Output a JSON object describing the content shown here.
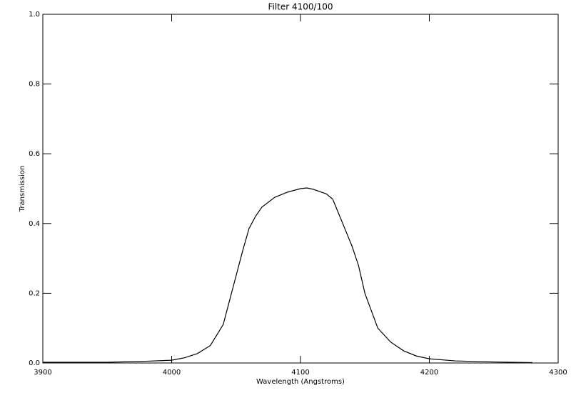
{
  "chart_data": {
    "type": "line",
    "title": "Filter 4100/100",
    "x_label": "Wavelength (Angstroms)",
    "y_label": "Transmission",
    "x": [
      3900,
      3950,
      3980,
      4000,
      4010,
      4020,
      4030,
      4040,
      4045,
      4050,
      4055,
      4060,
      4065,
      4070,
      4080,
      4090,
      4100,
      4105,
      4110,
      4120,
      4125,
      4130,
      4135,
      4140,
      4145,
      4150,
      4155,
      4160,
      4170,
      4180,
      4190,
      4200,
      4220,
      4250,
      4280
    ],
    "series": [
      {
        "color": "#000000",
        "values": [
          0.002,
          0.002,
          0.005,
          0.008,
          0.015,
          0.027,
          0.05,
          0.11,
          0.18,
          0.25,
          0.32,
          0.385,
          0.42,
          0.447,
          0.475,
          0.49,
          0.5,
          0.502,
          0.498,
          0.485,
          0.47,
          0.425,
          0.38,
          0.335,
          0.28,
          0.2,
          0.15,
          0.1,
          0.06,
          0.035,
          0.02,
          0.012,
          0.006,
          0.003,
          0.001
        ]
      }
    ],
    "xlim": [
      3900,
      4300
    ],
    "xticks": [
      3900,
      4000,
      4100,
      4200,
      4300
    ],
    "ylim": [
      0,
      1
    ],
    "yticks": [
      {
        "value": 0,
        "label": "0.0"
      },
      {
        "value": 0.2,
        "label": "0.2"
      },
      {
        "value": 0.4,
        "label": "0.4"
      },
      {
        "value": 0.6,
        "label": "0.6"
      },
      {
        "value": 0.8,
        "label": "0.8"
      },
      {
        "value": 1,
        "label": "1.0"
      }
    ],
    "grid": false
  }
}
